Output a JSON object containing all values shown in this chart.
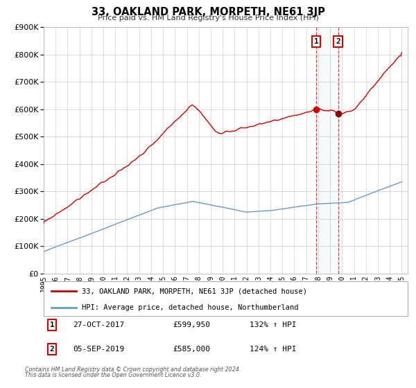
{
  "title": "33, OAKLAND PARK, MORPETH, NE61 3JP",
  "subtitle": "Price paid vs. HM Land Registry's House Price Index (HPI)",
  "legend_line1": "33, OAKLAND PARK, MORPETH, NE61 3JP (detached house)",
  "legend_line2": "HPI: Average price, detached house, Northumberland",
  "sale1_label": "1",
  "sale1_date": "27-OCT-2017",
  "sale1_price": "£599,950",
  "sale1_hpi": "132% ↑ HPI",
  "sale1_year": 2017.83,
  "sale1_value": 599950,
  "sale2_label": "2",
  "sale2_date": "05-SEP-2019",
  "sale2_price": "£585,000",
  "sale2_hpi": "124% ↑ HPI",
  "sale2_year": 2019.67,
  "sale2_value": 585000,
  "footnote1": "Contains HM Land Registry data © Crown copyright and database right 2024.",
  "footnote2": "This data is licensed under the Open Government Licence v3.0.",
  "red_color": "#cc0000",
  "blue_color": "#6699cc",
  "background_color": "#ffffff",
  "grid_color": "#cccccc",
  "xmin": 1995.0,
  "xmax": 2025.5,
  "ymin": 0,
  "ymax": 900000
}
